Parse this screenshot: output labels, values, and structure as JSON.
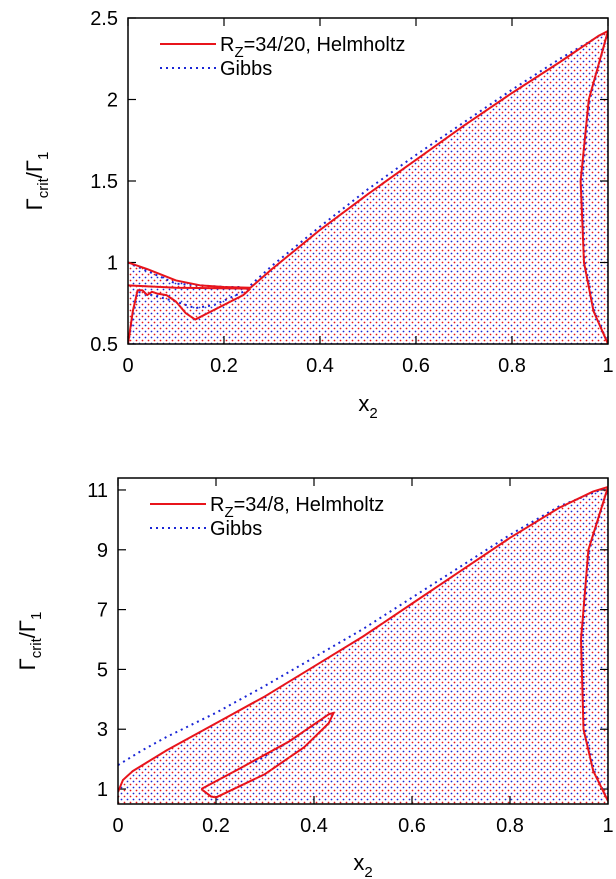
{
  "chart_data": [
    {
      "type": "line",
      "xlabel": "x",
      "xlabel_sub": "2",
      "ylabel": "Γ",
      "ylabel_sub": "crit",
      "ylabel_den": "/Γ",
      "ylabel_den_sub": "1",
      "xlim": [
        0,
        1
      ],
      "ylim": [
        0.5,
        2.5
      ],
      "xticks": [
        0,
        0.2,
        0.4,
        0.6,
        0.8,
        1
      ],
      "xtick_labels": [
        "0",
        "0.2",
        "0.4",
        "0.6",
        "0.8",
        "1"
      ],
      "yticks": [
        0.5,
        1,
        1.5,
        2,
        2.5
      ],
      "ytick_labels": [
        "0.5",
        "1",
        "1.5",
        "2",
        "2.5"
      ],
      "legend_position": "top-left",
      "legend": [
        {
          "pre": "R",
          "sub": "Z",
          "post": "=34/20, Helmholtz",
          "color": "#e8141b",
          "style": "solid"
        },
        {
          "pre": "Gibbs",
          "sub": "",
          "post": "",
          "color": "#1a26d6",
          "style": "dotted"
        }
      ],
      "series": [
        {
          "name": "Helmholtz",
          "color": "#e8141b",
          "style": "solid",
          "lines": [
            [
              [
                0,
                0.5
              ],
              [
                0.01,
                0.7
              ],
              [
                0.02,
                0.83
              ],
              [
                0.03,
                0.83
              ],
              [
                0.04,
                0.8
              ],
              [
                0.05,
                0.82
              ],
              [
                0.06,
                0.81
              ],
              [
                0.08,
                0.8
              ],
              [
                0.1,
                0.76
              ],
              [
                0.12,
                0.69
              ],
              [
                0.14,
                0.65
              ],
              [
                0.16,
                0.68
              ],
              [
                0.2,
                0.74
              ],
              [
                0.24,
                0.8
              ],
              [
                0.255,
                0.84
              ]
            ],
            [
              [
                0,
                1.0
              ],
              [
                0.04,
                0.96
              ],
              [
                0.1,
                0.89
              ],
              [
                0.15,
                0.86
              ],
              [
                0.2,
                0.85
              ],
              [
                0.255,
                0.845
              ],
              [
                0.3,
                0.96
              ],
              [
                0.4,
                1.2
              ],
              [
                0.5,
                1.42
              ],
              [
                0.6,
                1.63
              ],
              [
                0.7,
                1.84
              ],
              [
                0.8,
                2.04
              ],
              [
                0.9,
                2.23
              ],
              [
                0.98,
                2.39
              ],
              [
                1.0,
                2.42
              ]
            ],
            [
              [
                0,
                0.86
              ],
              [
                0.1,
                0.845
              ],
              [
                0.255,
                0.84
              ]
            ],
            [
              [
                1.0,
                2.42
              ],
              [
                0.96,
                2.0
              ],
              [
                0.943,
                1.5
              ],
              [
                0.95,
                1.0
              ],
              [
                0.97,
                0.7
              ],
              [
                1.0,
                0.5
              ]
            ]
          ]
        },
        {
          "name": "Gibbs",
          "color": "#1a26d6",
          "style": "dotted",
          "lines": [
            [
              [
                0,
                0.5
              ],
              [
                0.02,
                0.82
              ],
              [
                0.05,
                0.8
              ],
              [
                0.1,
                0.76
              ],
              [
                0.14,
                0.72
              ],
              [
                0.18,
                0.74
              ],
              [
                0.24,
                0.82
              ],
              [
                0.3,
                0.98
              ],
              [
                0.4,
                1.22
              ],
              [
                0.5,
                1.45
              ],
              [
                0.6,
                1.66
              ],
              [
                0.7,
                1.86
              ],
              [
                0.8,
                2.06
              ],
              [
                0.9,
                2.25
              ],
              [
                1.0,
                2.42
              ]
            ],
            [
              [
                0,
                1.0
              ],
              [
                0.1,
                0.87
              ],
              [
                0.2,
                0.85
              ],
              [
                0.24,
                0.85
              ]
            ],
            [
              [
                1.0,
                2.42
              ],
              [
                0.962,
                2.0
              ],
              [
                0.946,
                1.5
              ],
              [
                0.952,
                1.0
              ],
              [
                0.972,
                0.7
              ],
              [
                1.0,
                0.5
              ]
            ]
          ]
        }
      ]
    },
    {
      "type": "line",
      "xlabel": "x",
      "xlabel_sub": "2",
      "ylabel": "Γ",
      "ylabel_sub": "crit",
      "ylabel_den": "/Γ",
      "ylabel_den_sub": "1",
      "xlim": [
        0,
        1
      ],
      "ylim": [
        0.5,
        11.4
      ],
      "xticks": [
        0,
        0.2,
        0.4,
        0.6,
        0.8,
        1
      ],
      "xtick_labels": [
        "0",
        "0.2",
        "0.4",
        "0.6",
        "0.8",
        "1"
      ],
      "yticks": [
        1,
        3,
        5,
        7,
        9,
        11
      ],
      "ytick_labels": [
        "1",
        "3",
        "5",
        "7",
        "9",
        "11"
      ],
      "legend_position": "top-left",
      "legend": [
        {
          "pre": "R",
          "sub": "Z",
          "post": "=34/8, Helmholtz",
          "color": "#e8141b",
          "style": "solid"
        },
        {
          "pre": "Gibbs",
          "sub": "",
          "post": "",
          "color": "#1a26d6",
          "style": "dotted"
        }
      ],
      "series": [
        {
          "name": "Helmholtz",
          "color": "#e8141b",
          "style": "solid",
          "lines": [
            [
              [
                0,
                0.9
              ],
              [
                0.01,
                1.3
              ],
              [
                0.03,
                1.6
              ],
              [
                0.1,
                2.3
              ],
              [
                0.2,
                3.2
              ],
              [
                0.3,
                4.1
              ],
              [
                0.4,
                5.1
              ],
              [
                0.5,
                6.1
              ],
              [
                0.6,
                7.2
              ],
              [
                0.7,
                8.3
              ],
              [
                0.8,
                9.4
              ],
              [
                0.9,
                10.4
              ],
              [
                0.97,
                10.95
              ],
              [
                1.0,
                11.1
              ]
            ],
            [
              [
                0.17,
                1.0
              ],
              [
                0.25,
                1.7
              ],
              [
                0.35,
                2.6
              ],
              [
                0.43,
                3.5
              ],
              [
                0.44,
                3.55
              ],
              [
                0.43,
                3.2
              ],
              [
                0.38,
                2.4
              ],
              [
                0.3,
                1.5
              ],
              [
                0.2,
                0.72
              ],
              [
                0.19,
                0.75
              ],
              [
                0.17,
                1.0
              ]
            ],
            [
              [
                1.0,
                11.1
              ],
              [
                0.96,
                9.0
              ],
              [
                0.945,
                6.0
              ],
              [
                0.95,
                3.0
              ],
              [
                0.97,
                1.6
              ],
              [
                1.0,
                0.6
              ]
            ]
          ]
        },
        {
          "name": "Gibbs",
          "color": "#1a26d6",
          "style": "dotted",
          "lines": [
            [
              [
                0,
                1.8
              ],
              [
                0.05,
                2.3
              ],
              [
                0.1,
                2.75
              ],
              [
                0.2,
                3.55
              ],
              [
                0.3,
                4.45
              ],
              [
                0.4,
                5.4
              ],
              [
                0.5,
                6.35
              ],
              [
                0.6,
                7.4
              ],
              [
                0.7,
                8.45
              ],
              [
                0.8,
                9.5
              ],
              [
                0.9,
                10.45
              ],
              [
                1.0,
                11.1
              ]
            ],
            [
              [
                0.28,
                1.9
              ],
              [
                0.35,
                2.6
              ],
              [
                0.42,
                3.35
              ]
            ],
            [
              [
                1.0,
                11.1
              ],
              [
                0.962,
                9.0
              ],
              [
                0.948,
                6.0
              ],
              [
                0.953,
                3.0
              ],
              [
                0.972,
                1.6
              ],
              [
                1.0,
                0.6
              ]
            ]
          ]
        }
      ]
    }
  ]
}
